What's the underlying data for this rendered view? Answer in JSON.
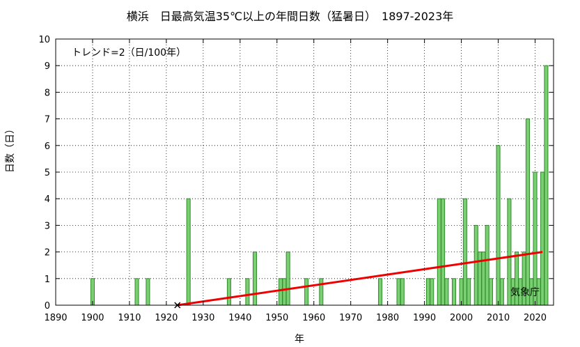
{
  "chart_data": {
    "type": "bar",
    "title": "横浜　日最高気温35℃以上の年間日数（猛暑日）　1897-2023年",
    "xlabel": "年",
    "ylabel": "日数（日）",
    "annotation": "トレンド=2（日/100年）",
    "credit": "気象庁",
    "xlim": [
      1890,
      2025
    ],
    "ylim": [
      0,
      10
    ],
    "xticks": [
      1890,
      1900,
      1910,
      1920,
      1930,
      1940,
      1950,
      1960,
      1970,
      1980,
      1990,
      2000,
      2010,
      2020
    ],
    "yticks": [
      0,
      1,
      2,
      3,
      4,
      5,
      6,
      7,
      8,
      9,
      10
    ],
    "grid": true,
    "bar_color": "#7bcf73",
    "bar_edge_color": "#2f8a2a",
    "trend_color": "#ee0000",
    "missing_marker_year": 1923,
    "trend": {
      "x": [
        1923,
        2022
      ],
      "y": [
        0.0,
        2.0
      ]
    },
    "series": [
      {
        "x": [
          1900,
          1912,
          1915,
          1926,
          1937,
          1942,
          1944,
          1951,
          1952,
          1953,
          1958,
          1962,
          1978,
          1983,
          1984,
          1991,
          1992,
          1994,
          1995,
          1996,
          1998,
          2000,
          2001,
          2002,
          2004,
          2005,
          2006,
          2007,
          2008,
          2010,
          2011,
          2013,
          2014,
          2015,
          2016,
          2017,
          2018,
          2019,
          2020,
          2021,
          2022,
          2023
        ],
        "values": [
          1,
          1,
          1,
          4,
          1,
          1,
          2,
          1,
          1,
          2,
          1,
          1,
          1,
          1,
          1,
          1,
          1,
          4,
          4,
          1,
          1,
          1,
          4,
          1,
          3,
          2,
          2,
          3,
          1,
          6,
          1,
          4,
          1,
          2,
          1,
          2,
          7,
          1,
          5,
          1,
          5,
          9
        ]
      }
    ]
  }
}
